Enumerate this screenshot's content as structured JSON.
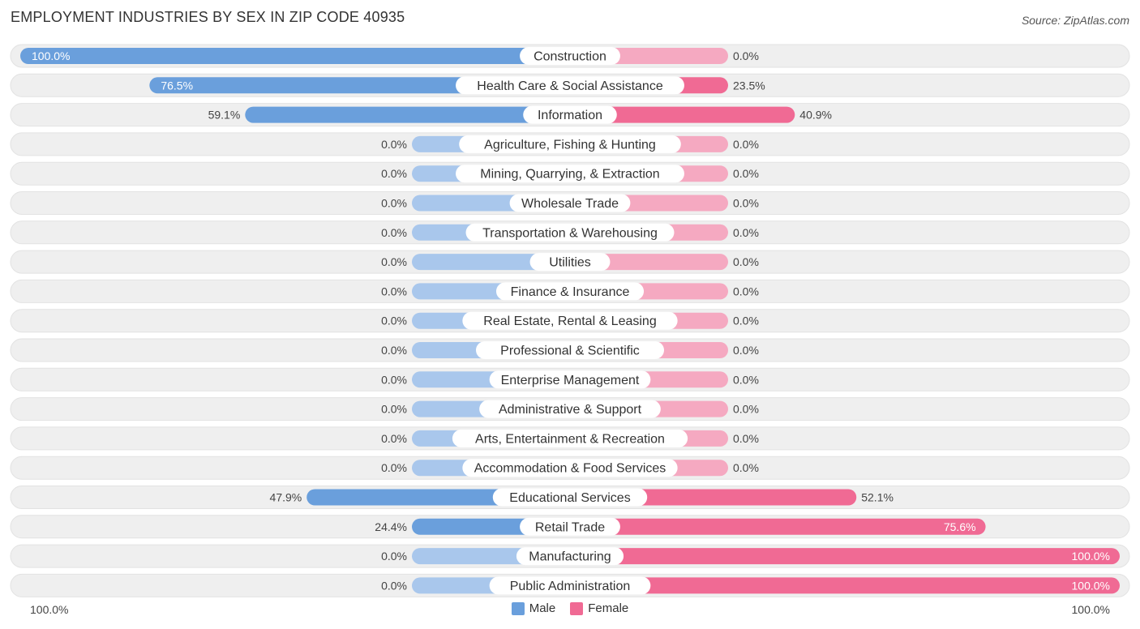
{
  "title": "EMPLOYMENT INDUSTRIES BY SEX IN ZIP CODE 40935",
  "source": "Source: ZipAtlas.com",
  "colors": {
    "male_strong": "#6a9fdc",
    "male_light": "#a9c7ec",
    "female_strong": "#f06a94",
    "female_light": "#f5a9c1",
    "row_bg": "#efefef"
  },
  "axis": {
    "left_label": "100.0%",
    "right_label": "100.0%"
  },
  "legend": {
    "male": "Male",
    "female": "Female"
  },
  "chart_data": {
    "type": "bar",
    "orientation": "horizontal-diverging",
    "xlim": [
      0,
      100
    ],
    "categories": [
      "Construction",
      "Health Care & Social Assistance",
      "Information",
      "Agriculture, Fishing & Hunting",
      "Mining, Quarrying, & Extraction",
      "Wholesale Trade",
      "Transportation & Warehousing",
      "Utilities",
      "Finance & Insurance",
      "Real Estate, Rental & Leasing",
      "Professional & Scientific",
      "Enterprise Management",
      "Administrative & Support",
      "Arts, Entertainment & Recreation",
      "Accommodation & Food Services",
      "Educational Services",
      "Retail Trade",
      "Manufacturing",
      "Public Administration"
    ],
    "series": [
      {
        "name": "Male",
        "values": [
          100.0,
          76.5,
          59.1,
          0,
          0,
          0,
          0,
          0,
          0,
          0,
          0,
          0,
          0,
          0,
          0,
          47.9,
          24.4,
          0,
          0
        ],
        "labels": [
          "100.0%",
          "76.5%",
          "59.1%",
          "0.0%",
          "0.0%",
          "0.0%",
          "0.0%",
          "0.0%",
          "0.0%",
          "0.0%",
          "0.0%",
          "0.0%",
          "0.0%",
          "0.0%",
          "0.0%",
          "47.9%",
          "24.4%",
          "0.0%",
          "0.0%"
        ]
      },
      {
        "name": "Female",
        "values": [
          0,
          23.5,
          40.9,
          0,
          0,
          0,
          0,
          0,
          0,
          0,
          0,
          0,
          0,
          0,
          0,
          52.1,
          75.6,
          100.0,
          100.0
        ],
        "labels": [
          "0.0%",
          "23.5%",
          "40.9%",
          "0.0%",
          "0.0%",
          "0.0%",
          "0.0%",
          "0.0%",
          "0.0%",
          "0.0%",
          "0.0%",
          "0.0%",
          "0.0%",
          "0.0%",
          "0.0%",
          "52.1%",
          "75.6%",
          "100.0%",
          "100.0%"
        ]
      }
    ],
    "legend_position": "bottom-center",
    "grid": false
  }
}
